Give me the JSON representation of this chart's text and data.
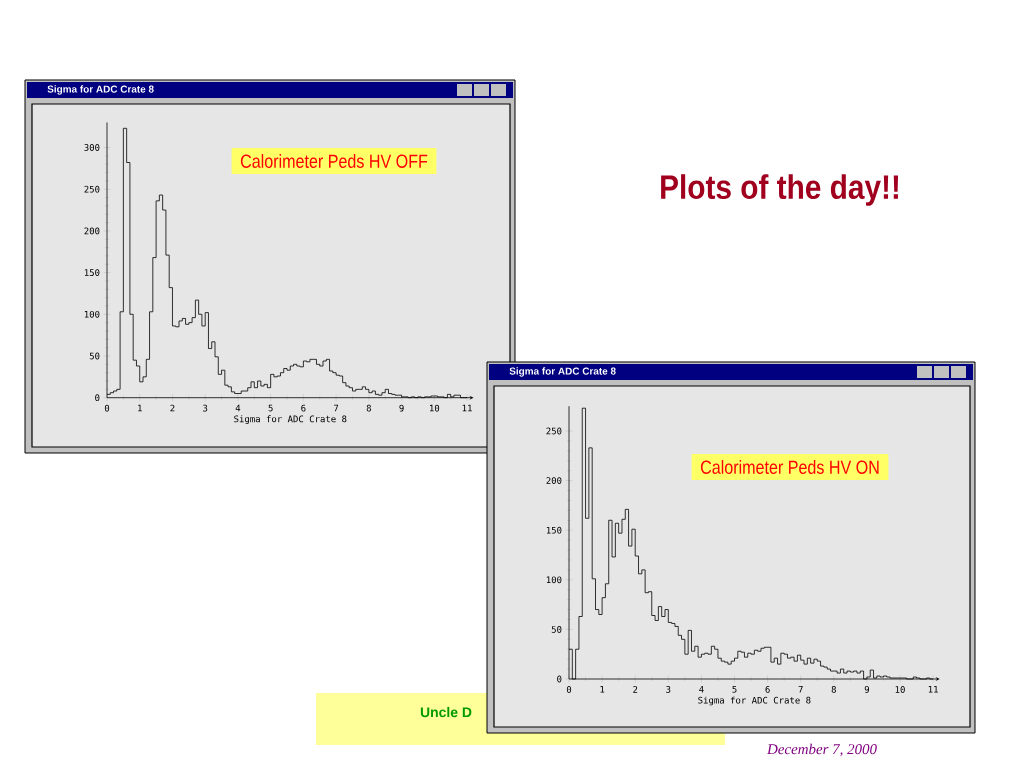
{
  "chart_data": [
    {
      "type": "histogram",
      "title": "Sigma for ADC Crate 8",
      "subtitle": "Calorimeter Peds HV OFF",
      "xlabel": "Sigma for ADC Crate 8",
      "color": "#000000",
      "annotations": [
        "Plots of the day!!"
      ],
      "bins": [
        0,
        0.1,
        0.2,
        0.3,
        0.4,
        0.5,
        0.6,
        0.7,
        0.8,
        0.9,
        1,
        1.1,
        1.2,
        1.3,
        1.4,
        1.5,
        1.6,
        1.7,
        1.8,
        1.9,
        2,
        2.1,
        2.2,
        2.3,
        2.4,
        2.5,
        2.6,
        2.7,
        2.8,
        2.9,
        3,
        3.1,
        3.2,
        3.3,
        3.4,
        3.5,
        3.6,
        3.7,
        3.8,
        3.9,
        4,
        4.1,
        4.2,
        4.3,
        4.4,
        4.5,
        4.6,
        4.7,
        4.8,
        4.9,
        5,
        5.1,
        5.2,
        5.3,
        5.4,
        5.5,
        5.6,
        5.7,
        5.8,
        5.9,
        6,
        6.1,
        6.2,
        6.3,
        6.4,
        6.5,
        6.6,
        6.7,
        6.8,
        6.9,
        7,
        7.1,
        7.2,
        7.3,
        7.4,
        7.5,
        7.6,
        7.7,
        7.8,
        7.9,
        8,
        8.1,
        8.2,
        8.3,
        8.4,
        8.5,
        8.6,
        8.7,
        8.8,
        8.9,
        9,
        9.1,
        9.2,
        9.3,
        9.4,
        9.5,
        9.6,
        9.7,
        9.8,
        9.9,
        10,
        10.1,
        10.2,
        10.3,
        10.4,
        10.5,
        10.6,
        10.7,
        10.8,
        10.9,
        11
      ],
      "values": [
        4,
        6,
        8,
        10,
        103,
        323,
        282,
        100,
        45,
        38,
        19,
        25,
        46,
        103,
        168,
        236,
        243,
        225,
        171,
        132,
        86,
        85,
        92,
        95,
        88,
        90,
        96,
        117,
        100,
        86,
        102,
        59,
        67,
        49,
        28,
        33,
        15,
        13,
        7,
        5,
        5,
        8,
        8,
        12,
        19,
        12,
        20,
        14,
        16,
        12,
        28,
        25,
        26,
        30,
        35,
        33,
        38,
        40,
        38,
        37,
        44,
        43,
        46,
        46,
        40,
        38,
        44,
        46,
        32,
        30,
        27,
        26,
        18,
        14,
        12,
        8,
        10,
        10,
        13,
        10,
        6,
        8,
        4,
        3,
        6,
        10,
        5,
        4,
        3,
        3,
        1,
        1,
        0,
        1,
        0,
        1,
        0,
        1,
        1,
        2,
        2,
        1,
        1,
        0,
        4,
        1,
        3,
        3,
        0,
        0
      ],
      "xlim": [
        0,
        11.2
      ],
      "ylim": [
        0,
        330
      ],
      "xticks": [
        0,
        1,
        2,
        3,
        4,
        5,
        6,
        7,
        8,
        9,
        10,
        11
      ],
      "yticks": [
        0,
        50,
        100,
        150,
        200,
        250,
        300
      ]
    },
    {
      "type": "histogram",
      "title": "Sigma for ADC Crate 8",
      "subtitle": "Calorimeter Peds HV ON",
      "xlabel": "Sigma for ADC Crate 8",
      "color": "#000000",
      "annotations": [
        "Uncle D",
        "December 7, 2000"
      ],
      "bins": [
        0,
        0.1,
        0.2,
        0.3,
        0.4,
        0.5,
        0.6,
        0.7,
        0.8,
        0.9,
        1,
        1.1,
        1.2,
        1.3,
        1.4,
        1.5,
        1.6,
        1.7,
        1.8,
        1.9,
        2,
        2.1,
        2.2,
        2.3,
        2.4,
        2.5,
        2.6,
        2.7,
        2.8,
        2.9,
        3,
        3.1,
        3.2,
        3.3,
        3.4,
        3.5,
        3.6,
        3.7,
        3.8,
        3.9,
        4,
        4.1,
        4.2,
        4.3,
        4.4,
        4.5,
        4.6,
        4.7,
        4.8,
        4.9,
        5,
        5.1,
        5.2,
        5.3,
        5.4,
        5.5,
        5.6,
        5.7,
        5.8,
        5.9,
        6,
        6.1,
        6.2,
        6.3,
        6.4,
        6.5,
        6.6,
        6.7,
        6.8,
        6.9,
        7,
        7.1,
        7.2,
        7.3,
        7.4,
        7.5,
        7.6,
        7.7,
        7.8,
        7.9,
        8,
        8.1,
        8.2,
        8.3,
        8.4,
        8.5,
        8.6,
        8.7,
        8.8,
        8.9,
        9,
        9.1,
        9.2,
        9.3,
        9.4,
        9.5,
        9.6,
        9.7,
        9.8,
        9.9,
        10,
        10.1,
        10.2,
        10.3,
        10.4,
        10.5,
        10.6,
        10.7,
        10.8,
        10.9,
        11
      ],
      "values": [
        30,
        0,
        30,
        63,
        273,
        162,
        233,
        101,
        70,
        65,
        82,
        96,
        160,
        123,
        157,
        147,
        161,
        171,
        134,
        151,
        124,
        106,
        110,
        87,
        88,
        64,
        59,
        73,
        63,
        70,
        57,
        56,
        53,
        44,
        40,
        25,
        49,
        28,
        33,
        22,
        25,
        26,
        25,
        33,
        30,
        21,
        18,
        17,
        15,
        18,
        21,
        28,
        27,
        22,
        26,
        25,
        29,
        28,
        31,
        32,
        32,
        17,
        21,
        15,
        26,
        25,
        21,
        22,
        18,
        24,
        19,
        15,
        21,
        16,
        20,
        18,
        13,
        12,
        10,
        8,
        8,
        6,
        10,
        6,
        8,
        7,
        8,
        6,
        8,
        0,
        2,
        9,
        1,
        3,
        2,
        3,
        2,
        1,
        1,
        1,
        1,
        1,
        0,
        0,
        2,
        1,
        0,
        0,
        1,
        0
      ],
      "xlim": [
        0,
        11.2
      ],
      "ylim": [
        0,
        275
      ],
      "xticks": [
        0,
        1,
        2,
        3,
        4,
        5,
        6,
        7,
        8,
        9,
        10,
        11
      ],
      "yticks": [
        0,
        50,
        100,
        150,
        200,
        250
      ]
    }
  ]
}
